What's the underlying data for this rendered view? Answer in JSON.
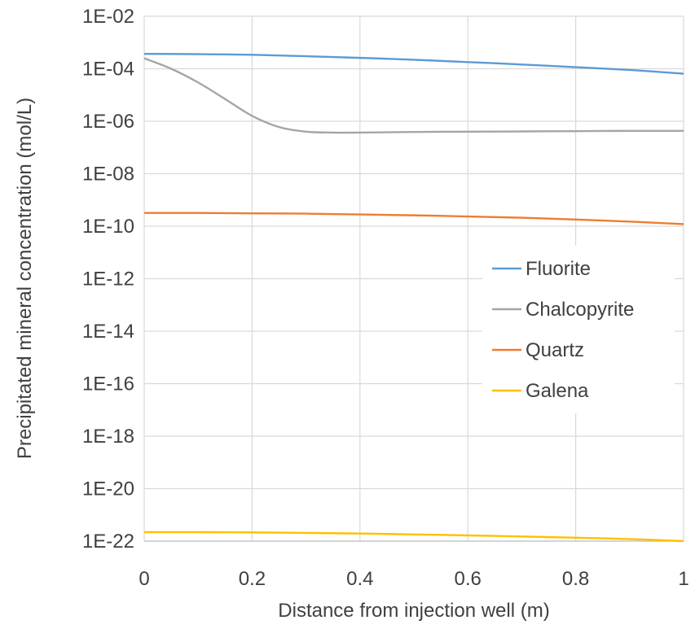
{
  "chart_data": {
    "type": "line",
    "xlabel": "Distance from injection well (m)",
    "ylabel": "Precipitated mineral concentration (mol/L)",
    "y_scale": "log",
    "xlim": [
      0,
      1
    ],
    "ylim": [
      1e-22,
      0.01
    ],
    "x_ticks": [
      {
        "value": 0,
        "label": "0"
      },
      {
        "value": 0.2,
        "label": "0.2"
      },
      {
        "value": 0.4,
        "label": "0.4"
      },
      {
        "value": 0.6,
        "label": "0.6"
      },
      {
        "value": 0.8,
        "label": "0.8"
      },
      {
        "value": 1,
        "label": "1"
      }
    ],
    "y_ticks": [
      {
        "value": 0.01,
        "label": "1E-02"
      },
      {
        "value": 0.0001,
        "label": "1E-04"
      },
      {
        "value": 1e-06,
        "label": "1E-06"
      },
      {
        "value": 1e-08,
        "label": "1E-08"
      },
      {
        "value": 1e-10,
        "label": "1E-10"
      },
      {
        "value": 1e-12,
        "label": "1E-12"
      },
      {
        "value": 1e-14,
        "label": "1E-14"
      },
      {
        "value": 1e-16,
        "label": "1E-16"
      },
      {
        "value": 1e-18,
        "label": "1E-18"
      },
      {
        "value": 1e-20,
        "label": "1E-20"
      },
      {
        "value": 1e-22,
        "label": "1E-22"
      }
    ],
    "grid": true,
    "legend_position": "right",
    "series": [
      {
        "name": "Fluorite",
        "color": "#5b9bd5",
        "x": [
          0,
          0.1,
          0.2,
          0.3,
          0.4,
          0.5,
          0.6,
          0.7,
          0.8,
          0.9,
          1.0
        ],
        "y": [
          0.00037,
          0.00036,
          0.00034,
          0.0003,
          0.00026,
          0.00022,
          0.00018,
          0.000145,
          0.000115,
          9e-05,
          6.5e-05
        ]
      },
      {
        "name": "Chalcopyrite",
        "color": "#a5a5a5",
        "x": [
          0,
          0.05,
          0.1,
          0.15,
          0.2,
          0.25,
          0.3,
          0.35,
          0.4,
          0.5,
          0.6,
          0.7,
          0.8,
          0.9,
          1.0
        ],
        "y": [
          0.00025,
          0.0001,
          3e-05,
          7e-06,
          1.6e-06,
          6e-07,
          4e-07,
          3.7e-07,
          3.7e-07,
          3.9e-07,
          4e-07,
          4.1e-07,
          4.2e-07,
          4.3e-07,
          4.3e-07
        ]
      },
      {
        "name": "Quartz",
        "color": "#ed7d31",
        "x": [
          0,
          0.1,
          0.2,
          0.3,
          0.4,
          0.5,
          0.6,
          0.7,
          0.8,
          0.9,
          1.0
        ],
        "y": [
          3.2e-10,
          3.2e-10,
          3.1e-10,
          3e-10,
          2.8e-10,
          2.6e-10,
          2.35e-10,
          2.1e-10,
          1.8e-10,
          1.5e-10,
          1.2e-10
        ]
      },
      {
        "name": "Galena",
        "color": "#ffc000",
        "x": [
          0,
          0.1,
          0.2,
          0.3,
          0.4,
          0.5,
          0.6,
          0.7,
          0.8,
          0.9,
          1.0
        ],
        "y": [
          2.2e-22,
          2.2e-22,
          2.15e-22,
          2.05e-22,
          1.95e-22,
          1.8e-22,
          1.65e-22,
          1.5e-22,
          1.35e-22,
          1.2e-22,
          1e-22
        ]
      }
    ]
  }
}
